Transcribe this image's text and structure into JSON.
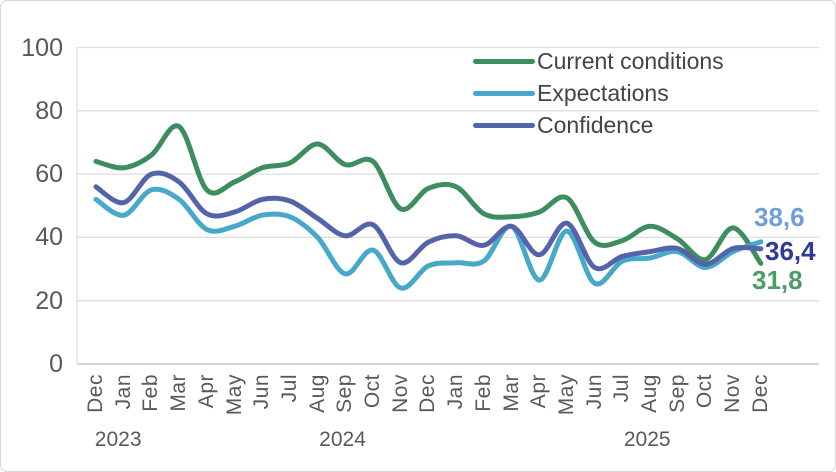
{
  "chart_data": {
    "type": "line",
    "title": "",
    "categories": [
      "Dec",
      "Jan",
      "Feb",
      "Mar",
      "Apr",
      "May",
      "Jun",
      "Jul",
      "Aug",
      "Sep",
      "Oct",
      "Nov",
      "Dec",
      "Jan",
      "Feb",
      "Mar",
      "Apr",
      "May",
      "Jun",
      "Jul",
      "Aug",
      "Sep",
      "Oct",
      "Nov",
      "Dec"
    ],
    "year_labels": [
      {
        "text": "2023",
        "month_index": 0.8
      },
      {
        "text": "2024",
        "month_index": 8.9
      },
      {
        "text": "2025",
        "month_index": 19.9
      }
    ],
    "y_ticks": [
      0,
      20,
      40,
      60,
      80,
      100
    ],
    "ylim": [
      0,
      100
    ],
    "grid": true,
    "legend_position": "top-right",
    "series": [
      {
        "name": "Current conditions",
        "color": "#3E8D5E",
        "values": [
          64,
          62,
          66,
          75,
          55,
          57.5,
          62,
          63.5,
          69.5,
          63,
          64,
          49,
          55.5,
          56,
          47.5,
          46.5,
          48,
          52.5,
          38.5,
          39,
          43.5,
          39.5,
          33,
          43,
          31.8
        ]
      },
      {
        "name": "Expectations",
        "color": "#47A8C9",
        "values": [
          52,
          47,
          55,
          52,
          42.5,
          43.5,
          47,
          46.5,
          40,
          28.5,
          36,
          24,
          31,
          32,
          32.5,
          43.5,
          26.5,
          42,
          25.5,
          32.5,
          33.5,
          35.5,
          30.5,
          35.5,
          38.6
        ]
      },
      {
        "name": "Confidence",
        "color": "#5564A9",
        "values": [
          56,
          51,
          60,
          57.5,
          47.5,
          48,
          52,
          51.5,
          46,
          40.5,
          44,
          32,
          38.5,
          40.5,
          37.5,
          43.5,
          34.5,
          44.5,
          30.5,
          34,
          35.5,
          36.5,
          31.5,
          36.5,
          36.4
        ]
      }
    ],
    "end_labels": [
      {
        "text": "38,6",
        "color": "#6F9FD8",
        "series": "Expectations"
      },
      {
        "text": "36,4",
        "color": "#2E3A96",
        "series": "Confidence"
      },
      {
        "text": "31,8",
        "color": "#4E9B66",
        "series": "Current conditions"
      }
    ]
  }
}
